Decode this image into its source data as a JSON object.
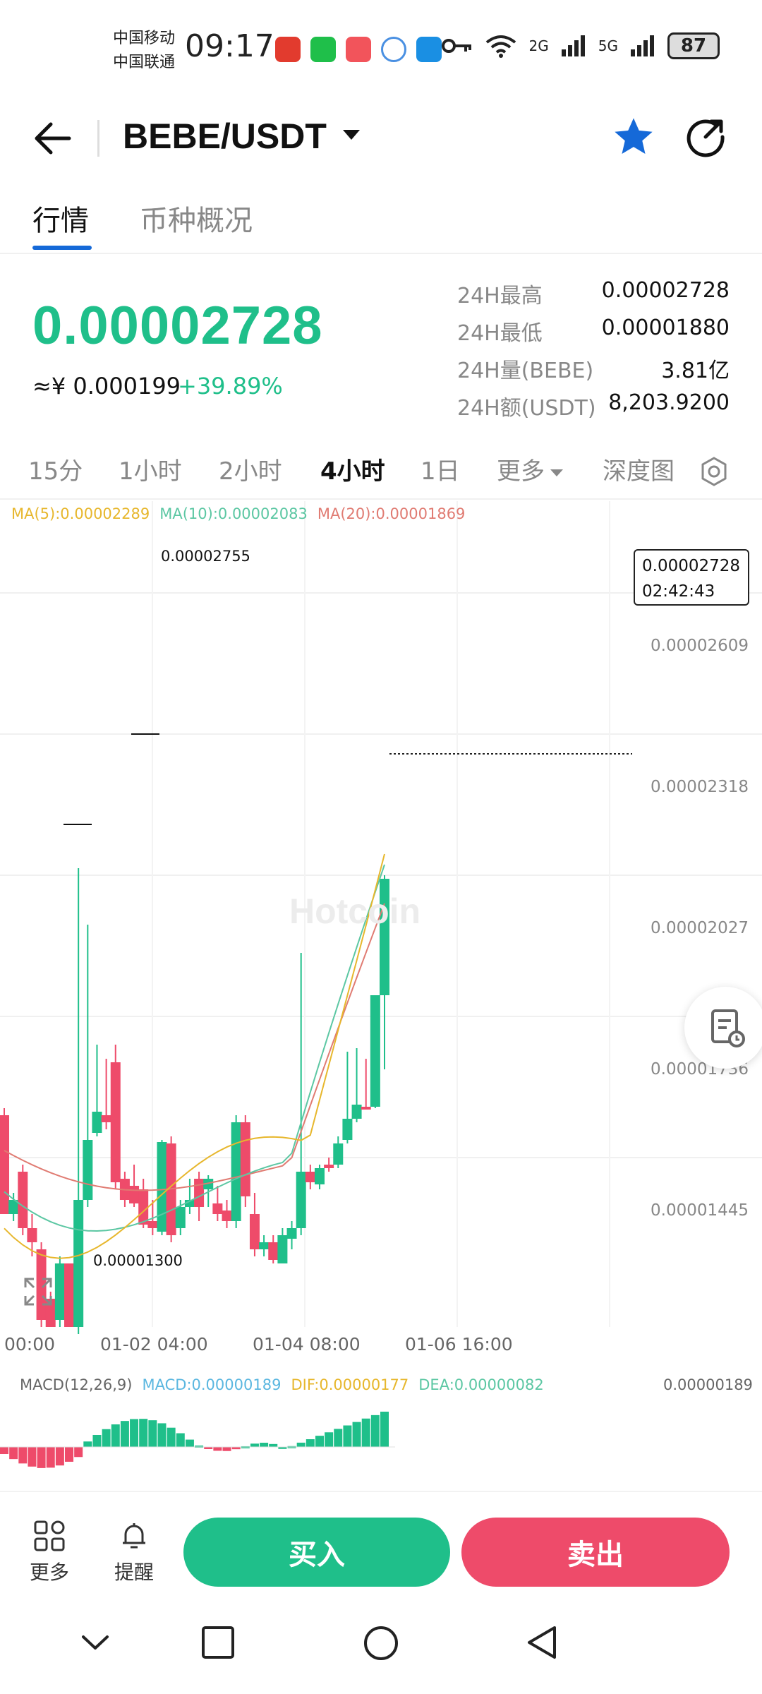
{
  "status_bar": {
    "carrier_1": "中国移动",
    "carrier_2": "中国联通",
    "time": "09:17",
    "signal_2g": "2G",
    "signal_5g": "5G",
    "battery": "87"
  },
  "header": {
    "pair": "BEBE/USDT"
  },
  "tabs": [
    "行情",
    "币种概况"
  ],
  "ticker": {
    "price": "0.00002728",
    "cny": "≈¥ 0.000199",
    "change": "+39.89%",
    "stats": [
      {
        "label": "24H最高",
        "value": "0.00002728"
      },
      {
        "label": "24H最低",
        "value": "0.00001880"
      },
      {
        "label": "24H量(BEBE)",
        "value": "3.81亿"
      },
      {
        "label": "24H额(USDT)",
        "value": "8,203.9200"
      }
    ]
  },
  "intervals": [
    "15分",
    "1小时",
    "2小时",
    "4小时",
    "1日",
    "更多",
    "深度图"
  ],
  "active_interval": "4小时",
  "chart": {
    "ma5": "MA(5):0.00002289",
    "ma10": "MA(10):0.00002083",
    "ma20": "MA(20):0.00001869",
    "high_label": "0.00002755",
    "low_label": "0.00001300",
    "current_price": "0.00002728",
    "countdown": "02:42:43",
    "watermark": "Hotcoin",
    "y_ticks": [
      "0.00002609",
      "0.00002318",
      "0.00002027",
      "0.00001736",
      "0.00001445"
    ],
    "x_ticks": [
      "00:00",
      "01-02 04:00",
      "01-04 08:00",
      "01-06 16:00"
    ],
    "macd_name": "MACD(12,26,9)",
    "macd": "MACD:0.00000189",
    "dif": "DIF:0.00000177",
    "dea": "DEA:0.00000082",
    "macd_right": "0.00000189",
    "colors": {
      "up": "#1fbf8a",
      "down": "#ee4b6a",
      "ma5": "#e7b72d",
      "ma10": "#5cc7a3",
      "ma20": "#e07b72"
    }
  },
  "bottom_bar": {
    "more": "更多",
    "alert": "提醒",
    "buy": "买入",
    "sell": "卖出"
  }
}
